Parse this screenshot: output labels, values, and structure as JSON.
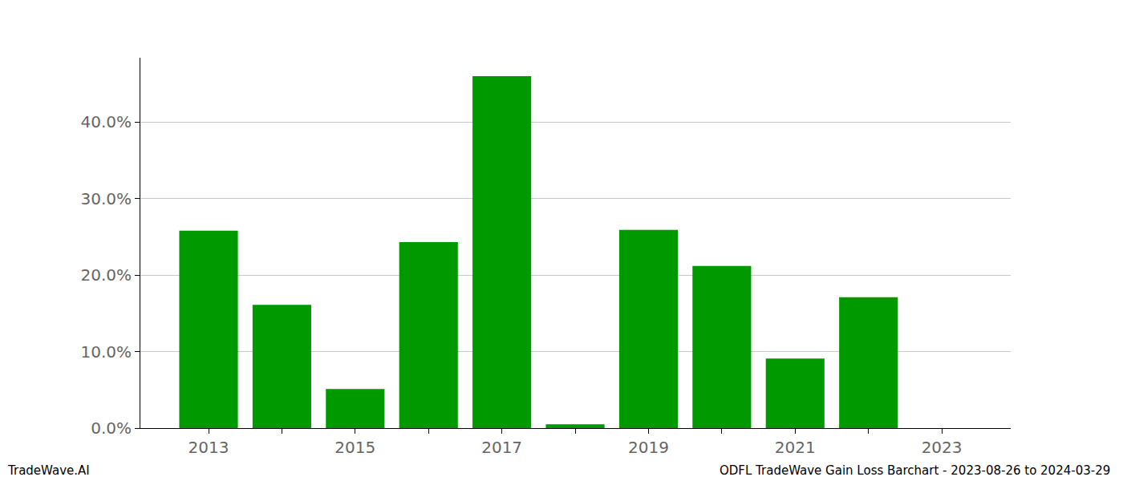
{
  "chart_data": {
    "type": "bar",
    "categories": [
      "2013",
      null,
      "2015",
      null,
      "2017",
      null,
      "2019",
      null,
      "2021",
      null,
      "2023"
    ],
    "values": [
      25.8,
      16.1,
      5.1,
      24.3,
      46.0,
      0.5,
      25.9,
      21.2,
      9.1,
      17.1,
      0
    ],
    "color": "#009900",
    "ylim": [
      0,
      48.4
    ],
    "yticks": [
      {
        "value": 0,
        "label": "0.0%"
      },
      {
        "value": 10,
        "label": "10.0%"
      },
      {
        "value": 20,
        "label": "20.0%"
      },
      {
        "value": 30,
        "label": "30.0%"
      },
      {
        "value": 40,
        "label": "40.0%"
      }
    ],
    "grid": true,
    "annotations": [
      "TradeWave.AI",
      "ODFL TradeWave Gain Loss Barchart - 2023-08-26 to 2024-03-29"
    ]
  }
}
